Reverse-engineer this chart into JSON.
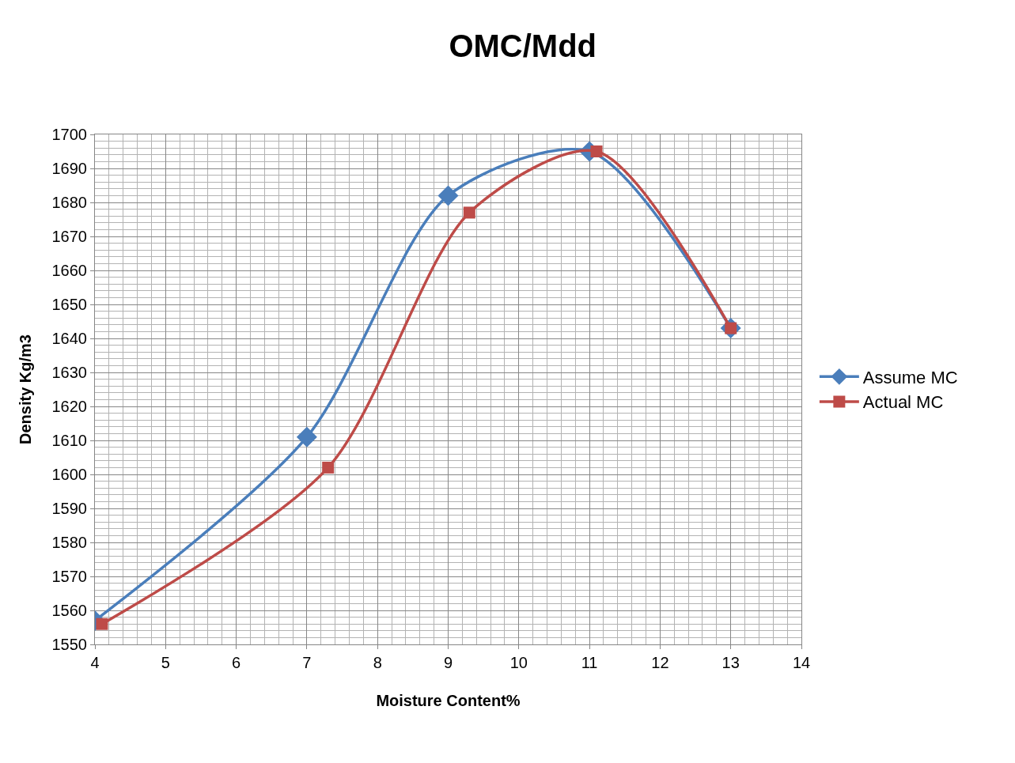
{
  "chart_data": {
    "type": "line",
    "title": "OMC/Mdd",
    "xlabel": "Moisture Content%",
    "ylabel": "Density Kg/m3",
    "series": [
      {
        "name": "Assume MC",
        "color": "#4a7ebb",
        "marker": "diamond",
        "x": [
          4,
          7,
          9,
          11,
          13
        ],
        "values": [
          1557,
          1611,
          1682,
          1695,
          1643
        ]
      },
      {
        "name": "Actual MC",
        "color": "#be4b48",
        "marker": "square",
        "x": [
          4.1,
          7.3,
          9.3,
          11.1,
          13
        ],
        "values": [
          1556,
          1602,
          1677,
          1695,
          1643
        ]
      }
    ],
    "xlim": [
      4,
      14
    ],
    "xticks": [
      4,
      5,
      6,
      7,
      8,
      9,
      10,
      11,
      12,
      13,
      14
    ],
    "ylim": [
      1550,
      1700
    ],
    "yticks": [
      1550,
      1560,
      1570,
      1580,
      1590,
      1600,
      1610,
      1620,
      1630,
      1640,
      1650,
      1660,
      1670,
      1680,
      1690,
      1700
    ],
    "grid": true,
    "legend": "right",
    "line_style": "solid"
  }
}
